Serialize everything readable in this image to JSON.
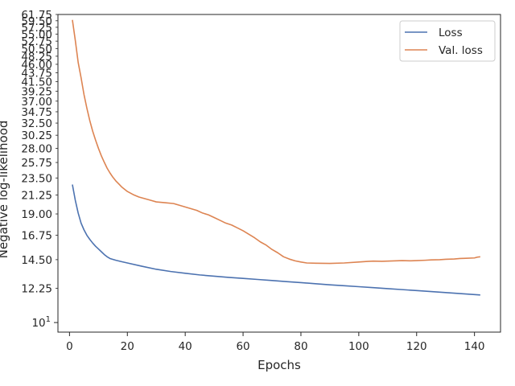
{
  "chart_data": {
    "type": "line",
    "xlabel": "Epochs",
    "ylabel": "Negative log-likelihood",
    "xlim": [
      -4,
      149
    ],
    "ylim": [
      9.45,
      61.75
    ],
    "y_scale": "log",
    "grid": false,
    "legend_position": "top-right",
    "x_ticks": [
      0,
      20,
      40,
      60,
      80,
      100,
      120,
      140
    ],
    "x_tick_labels": [
      "0",
      "20",
      "40",
      "60",
      "80",
      "100",
      "120",
      "140"
    ],
    "y_ticks": [
      12.25,
      14.5,
      16.75,
      19.0,
      21.25,
      23.5,
      25.75,
      28.0,
      30.25,
      32.5,
      34.75,
      37.0,
      39.25,
      41.5,
      43.75,
      46.0,
      48.25,
      50.5,
      52.75,
      55.0,
      57.25,
      59.5,
      61.75
    ],
    "y_tick_labels": [
      "12.25",
      "14.50",
      "16.75",
      "19.00",
      "21.25",
      "23.50",
      "25.75",
      "28.00",
      "30.25",
      "32.50",
      "34.75",
      "37.00",
      "39.25",
      "41.50",
      "43.75",
      "46.00",
      "48.25",
      "50.50",
      "52.75",
      "55.00",
      "57.25",
      "59.50",
      "61.75"
    ],
    "y_major_tick": {
      "value": 10,
      "base": "10",
      "exponent": "1"
    },
    "colors": {
      "Loss": "#4c72b0",
      "Val. loss": "#dd8452"
    },
    "series": [
      {
        "name": "Loss",
        "x": [
          1,
          2,
          3,
          4,
          5,
          6,
          7,
          8,
          9,
          10,
          11,
          12,
          13,
          14,
          16,
          18,
          20,
          25,
          30,
          35,
          40,
          45,
          50,
          55,
          60,
          65,
          70,
          75,
          80,
          85,
          90,
          95,
          100,
          105,
          110,
          115,
          120,
          125,
          130,
          135,
          140,
          142
        ],
        "y": [
          22.6,
          20.6,
          19.1,
          18.0,
          17.3,
          16.75,
          16.35,
          16.0,
          15.7,
          15.45,
          15.2,
          14.95,
          14.75,
          14.6,
          14.45,
          14.33,
          14.22,
          13.95,
          13.7,
          13.52,
          13.38,
          13.25,
          13.15,
          13.06,
          12.98,
          12.9,
          12.82,
          12.74,
          12.66,
          12.58,
          12.5,
          12.43,
          12.36,
          12.29,
          12.22,
          12.15,
          12.08,
          12.01,
          11.94,
          11.87,
          11.8,
          11.77
        ]
      },
      {
        "name": "Val. loss",
        "x": [
          1,
          2,
          3,
          4,
          5,
          6,
          7,
          8,
          9,
          10,
          11,
          12,
          13,
          14,
          15,
          16,
          17,
          18,
          20,
          22,
          24,
          26,
          28,
          30,
          33,
          36,
          38,
          40,
          42,
          44,
          46,
          48,
          50,
          52,
          54,
          56,
          58,
          60,
          62,
          64,
          66,
          68,
          70,
          72,
          74,
          76,
          78,
          80,
          82,
          85,
          90,
          95,
          100,
          103,
          105,
          108,
          110,
          113,
          115,
          118,
          120,
          123,
          125,
          128,
          130,
          133,
          135,
          137,
          140,
          141,
          142
        ],
        "y": [
          59.8,
          53.0,
          46.5,
          42.5,
          38.5,
          35.5,
          33.0,
          31.0,
          29.4,
          28.0,
          26.8,
          25.8,
          24.9,
          24.2,
          23.6,
          23.1,
          22.7,
          22.3,
          21.7,
          21.3,
          21.0,
          20.8,
          20.6,
          20.4,
          20.3,
          20.2,
          20.0,
          19.8,
          19.6,
          19.4,
          19.1,
          18.9,
          18.6,
          18.3,
          18.0,
          17.8,
          17.5,
          17.2,
          16.85,
          16.5,
          16.1,
          15.8,
          15.4,
          15.1,
          14.75,
          14.55,
          14.4,
          14.3,
          14.22,
          14.2,
          14.18,
          14.22,
          14.3,
          14.35,
          14.38,
          14.36,
          14.38,
          14.4,
          14.42,
          14.4,
          14.42,
          14.45,
          14.48,
          14.5,
          14.53,
          14.56,
          14.6,
          14.62,
          14.65,
          14.72,
          14.75
        ]
      }
    ]
  }
}
